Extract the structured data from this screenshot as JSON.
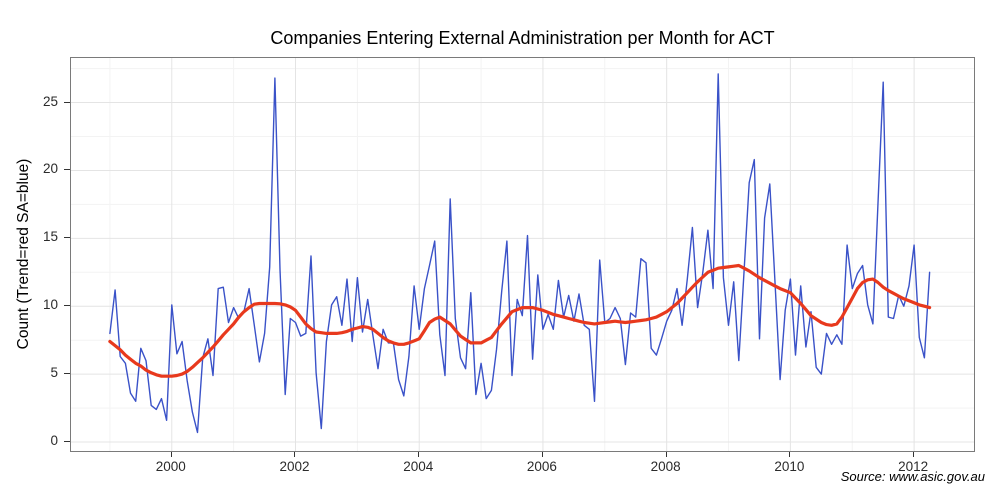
{
  "chart_data": {
    "type": "line",
    "title": "Companies Entering External Administration per Month for ACT",
    "ylabel": "Count (Trend=red SA=blue)",
    "source": "Source: www.asic.gov.au",
    "x_start_label": "Jan 1999",
    "frequency": "monthly",
    "grid": true,
    "axes": {
      "x_min_year": 1998.371,
      "x_max_year": 2012.968,
      "y_min": -0.66,
      "y_max": 28.28
    },
    "x_ticks": [
      {
        "label": "2000",
        "year": 2000
      },
      {
        "label": "2002",
        "year": 2002
      },
      {
        "label": "2004",
        "year": 2004
      },
      {
        "label": "2006",
        "year": 2006
      },
      {
        "label": "2008",
        "year": 2008
      },
      {
        "label": "2010",
        "year": 2010
      },
      {
        "label": "2012",
        "year": 2012
      }
    ],
    "x_minor_years": [
      1999,
      2001,
      2003,
      2005,
      2007,
      2009,
      2011
    ],
    "y_ticks": [
      {
        "label": "0",
        "value": 0
      },
      {
        "label": "5",
        "value": 5
      },
      {
        "label": "10",
        "value": 10
      },
      {
        "label": "15",
        "value": 15
      },
      {
        "label": "20",
        "value": 20
      },
      {
        "label": "25",
        "value": 25
      }
    ],
    "y_minor_values": [
      2.5,
      7.5,
      12.5,
      17.5,
      22.5,
      27.5
    ],
    "colors": {
      "sa_blue": "#3a52c8",
      "trend_red": "#e8391d",
      "grid_major": "#e4e4e4",
      "grid_minor": "#f3f3f3",
      "panel_border": "#7a7a7a",
      "tick": "#333333",
      "text": "#2b2b2b"
    },
    "series": [
      {
        "name": "SA (seasonally adjusted, blue)",
        "color": "#3a52c8",
        "stroke_width": 1.4,
        "values": [
          8.0,
          11.2,
          6.3,
          5.8,
          3.6,
          3.0,
          6.9,
          6.0,
          2.7,
          2.4,
          3.2,
          1.6,
          10.1,
          6.5,
          7.4,
          4.5,
          2.2,
          0.7,
          6.2,
          7.6,
          4.9,
          11.3,
          11.4,
          8.8,
          9.9,
          9.1,
          9.6,
          11.3,
          8.6,
          5.9,
          8.0,
          12.9,
          26.8,
          12.7,
          3.5,
          9.1,
          8.8,
          7.8,
          8.0,
          13.7,
          5.1,
          1.0,
          7.4,
          10.1,
          10.7,
          8.6,
          12.0,
          7.4,
          12.1,
          8.1,
          10.5,
          7.9,
          5.4,
          8.3,
          7.3,
          7.3,
          4.6,
          3.4,
          6.3,
          11.5,
          8.3,
          11.3,
          13.0,
          14.8,
          7.9,
          4.9,
          17.9,
          9.1,
          6.2,
          5.4,
          11.0,
          3.5,
          5.8,
          3.2,
          3.8,
          6.8,
          11.1,
          14.8,
          4.9,
          10.5,
          9.3,
          15.2,
          6.1,
          12.3,
          8.3,
          9.4,
          8.3,
          11.9,
          9.2,
          10.8,
          8.9,
          10.9,
          8.6,
          8.3,
          3.0,
          13.4,
          8.8,
          9.1,
          9.9,
          9.1,
          5.7,
          9.5,
          9.2,
          13.5,
          13.2,
          6.9,
          6.4,
          7.6,
          8.9,
          9.7,
          11.3,
          8.6,
          12.0,
          15.8,
          9.9,
          12.5,
          15.6,
          11.3,
          27.1,
          12.1,
          8.6,
          11.8,
          6.0,
          12.5,
          19.1,
          20.8,
          7.6,
          16.5,
          19.0,
          11.9,
          4.6,
          9.7,
          12.0,
          6.4,
          11.5,
          7.0,
          9.6,
          5.5,
          5.0,
          8.0,
          7.2,
          7.9,
          7.2,
          14.5,
          11.3,
          12.4,
          13.0,
          10.1,
          8.7,
          17.6,
          26.5,
          9.2,
          9.1,
          10.8,
          10.0,
          11.5,
          14.5,
          7.7,
          6.2,
          12.5
        ]
      },
      {
        "name": "Trend (red)",
        "color": "#e8391d",
        "stroke_width": 3.2,
        "values": [
          7.4,
          7.1,
          6.8,
          6.4,
          6.1,
          5.8,
          5.6,
          5.3,
          5.1,
          4.95,
          4.85,
          4.85,
          4.85,
          4.9,
          5.0,
          5.2,
          5.5,
          5.85,
          6.2,
          6.6,
          7.0,
          7.45,
          7.9,
          8.3,
          8.7,
          9.2,
          9.6,
          9.9,
          10.15,
          10.2,
          10.2,
          10.2,
          10.2,
          10.18,
          10.1,
          9.95,
          9.7,
          9.2,
          8.7,
          8.35,
          8.1,
          8.05,
          8.0,
          8.0,
          8.0,
          8.05,
          8.15,
          8.3,
          8.4,
          8.5,
          8.45,
          8.3,
          8.0,
          7.7,
          7.45,
          7.3,
          7.2,
          7.2,
          7.3,
          7.45,
          7.6,
          8.2,
          8.8,
          9.05,
          9.2,
          8.95,
          8.7,
          8.25,
          7.8,
          7.55,
          7.3,
          7.3,
          7.3,
          7.5,
          7.7,
          8.2,
          8.7,
          9.15,
          9.6,
          9.75,
          9.9,
          9.9,
          9.9,
          9.8,
          9.7,
          9.55,
          9.4,
          9.3,
          9.2,
          9.1,
          9.0,
          8.9,
          8.8,
          8.75,
          8.7,
          8.75,
          8.8,
          8.85,
          8.9,
          8.85,
          8.8,
          8.85,
          8.9,
          8.95,
          9.0,
          9.1,
          9.2,
          9.4,
          9.6,
          9.9,
          10.2,
          10.6,
          11.0,
          11.4,
          11.8,
          12.15,
          12.5,
          12.65,
          12.8,
          12.85,
          12.9,
          12.95,
          13.0,
          12.8,
          12.6,
          12.35,
          12.1,
          11.9,
          11.7,
          11.5,
          11.3,
          11.15,
          11.0,
          10.6,
          10.2,
          9.75,
          9.3,
          9.05,
          8.8,
          8.65,
          8.6,
          8.7,
          9.2,
          9.9,
          10.6,
          11.3,
          11.75,
          11.95,
          12.0,
          11.75,
          11.4,
          11.15,
          10.95,
          10.75,
          10.55,
          10.4,
          10.25,
          10.1,
          10.0,
          9.9
        ]
      }
    ]
  }
}
